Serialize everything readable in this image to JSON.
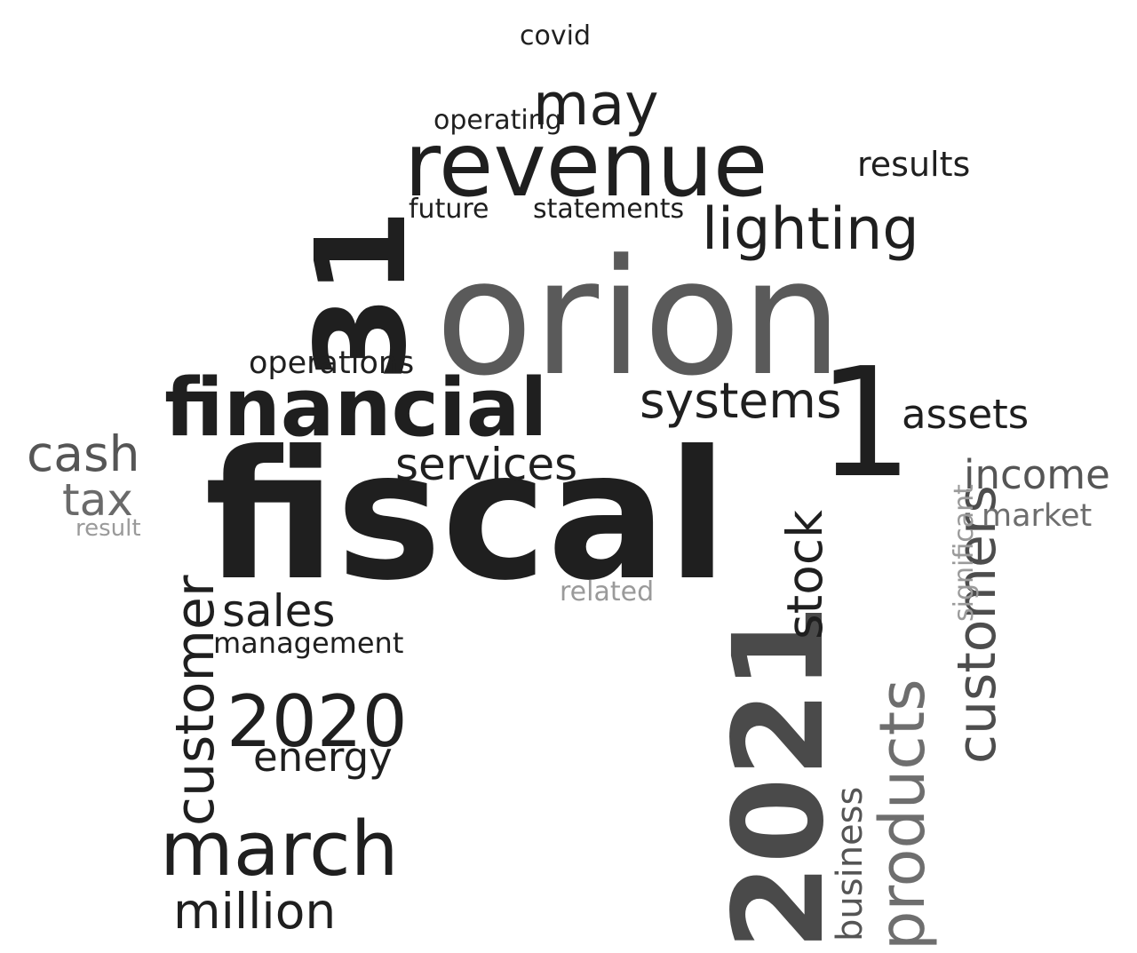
{
  "words": [
    {
      "text": "fiscal",
      "color": "#1f1f1f"
    },
    {
      "text": "orion",
      "color": "#5a5a5a"
    },
    {
      "text": "2021",
      "color": "#4a4a4a"
    },
    {
      "text": "revenue",
      "color": "#1f1f1f"
    },
    {
      "text": "financial",
      "color": "#1f1f1f"
    },
    {
      "text": "31",
      "color": "#1f1f1f"
    },
    {
      "text": "1",
      "color": "#1f1f1f"
    },
    {
      "text": "march",
      "color": "#1f1f1f"
    },
    {
      "text": "2020",
      "color": "#1f1f1f"
    },
    {
      "text": "products",
      "color": "#6e6e6e"
    },
    {
      "text": "customers",
      "color": "#4d4d4d"
    },
    {
      "text": "customer",
      "color": "#1f1f1f"
    },
    {
      "text": "lighting",
      "color": "#1f1f1f"
    },
    {
      "text": "systems",
      "color": "#1f1f1f"
    },
    {
      "text": "million",
      "color": "#1f1f1f"
    },
    {
      "text": "may",
      "color": "#1f1f1f"
    },
    {
      "text": "services",
      "color": "#1f1f1f"
    },
    {
      "text": "cash",
      "color": "#555555"
    },
    {
      "text": "tax",
      "color": "#6a6a6a"
    },
    {
      "text": "income",
      "color": "#555555"
    },
    {
      "text": "assets",
      "color": "#1f1f1f"
    },
    {
      "text": "stock",
      "color": "#1f1f1f"
    },
    {
      "text": "sales",
      "color": "#1f1f1f"
    },
    {
      "text": "energy",
      "color": "#1f1f1f"
    },
    {
      "text": "operations",
      "color": "#1f1f1f"
    },
    {
      "text": "management",
      "color": "#1f1f1f"
    },
    {
      "text": "business",
      "color": "#555555"
    },
    {
      "text": "results",
      "color": "#1f1f1f"
    },
    {
      "text": "market",
      "color": "#6e6e6e"
    },
    {
      "text": "future",
      "color": "#1f1f1f"
    },
    {
      "text": "statements",
      "color": "#1f1f1f"
    },
    {
      "text": "operating",
      "color": "#1f1f1f"
    },
    {
      "text": "covid",
      "color": "#1f1f1f"
    },
    {
      "text": "result",
      "color": "#9a9a9a"
    },
    {
      "text": "related",
      "color": "#9a9a9a"
    },
    {
      "text": "significant",
      "color": "#9a9a9a"
    }
  ]
}
